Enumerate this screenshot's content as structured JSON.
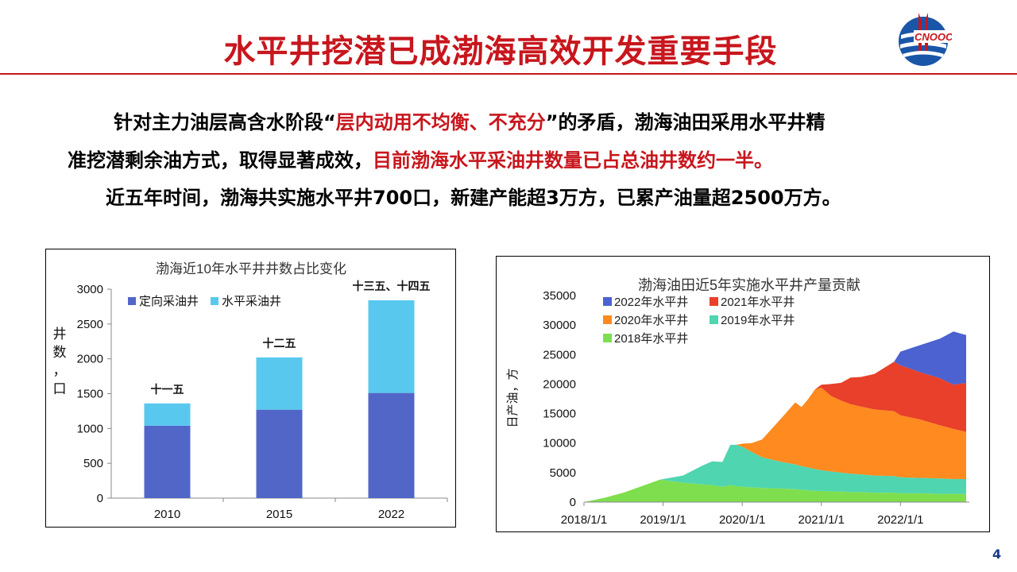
{
  "slide": {
    "title": "水平井挖潜已成渤海高效开发重要手段",
    "page_number": "4",
    "paragraph": {
      "line1_a": "针对主力油层高含水阶段“",
      "line1_hl": "层内动用不均衡、不充分",
      "line1_b": "”的矛盾，渤海油田采用水平井精",
      "line2_a": "准挖潜剩余油方式，取得显著成效，",
      "line2_hl": "目前渤海水平采油井数量已占总油井数约一半。",
      "line3": "近五年时间，渤海共实施水平井700口，新建产能超3万方，已累产油量超2500万方。"
    },
    "logo": {
      "icon": "cnooc-logo",
      "text": "CNOOC",
      "colors": [
        "#c8161d",
        "#1a56a8"
      ]
    }
  },
  "colors": {
    "title_red": "#c8161d",
    "dark_blue": "#5266c8",
    "light_blue": "#59c8ee"
  },
  "chart_data": [
    {
      "type": "bar",
      "stacked": true,
      "title": "渤海近10年水平井井数占比变化",
      "ylabel": "井数，口",
      "xlabel": "",
      "categories": [
        "2010",
        "2015",
        "2022"
      ],
      "category_annotations": [
        "十一五",
        "十二五",
        "十三五、十四五"
      ],
      "ylim": [
        0,
        3000
      ],
      "yticks": [
        0,
        500,
        1000,
        1500,
        2000,
        2500,
        3000
      ],
      "legend_position": "top-left",
      "series": [
        {
          "name": "定向采油井",
          "values": [
            1040,
            1270,
            1510
          ],
          "color": "#5266c8"
        },
        {
          "name": "水平采油井",
          "values": [
            320,
            750,
            1330
          ],
          "color": "#59c8ee"
        }
      ]
    },
    {
      "type": "area",
      "stacked": true,
      "title": "渤海油田近5年实施水平井产量贡献",
      "ylabel": "日产油，方",
      "xlabel": "",
      "x_ticks": [
        "2018/1/1",
        "2019/1/1",
        "2020/1/1",
        "2021/1/1",
        "2022/1/1"
      ],
      "x": [
        2018.0,
        2018.25,
        2018.5,
        2018.75,
        2018.96,
        2019.25,
        2019.5,
        2019.62,
        2019.75,
        2019.85,
        2019.92,
        2020.0,
        2020.12,
        2020.25,
        2020.5,
        2020.67,
        2020.75,
        2020.83,
        2020.92,
        2021.0,
        2021.12,
        2021.25,
        2021.37,
        2021.5,
        2021.67,
        2021.92,
        2022.0,
        2022.25,
        2022.5,
        2022.67,
        2022.83
      ],
      "ylim": [
        0,
        35000
      ],
      "yticks": [
        0,
        5000,
        10000,
        15000,
        20000,
        25000,
        30000,
        35000
      ],
      "legend_position": "top-left",
      "series": [
        {
          "name": "2018年水平井",
          "color": "#7ede4e",
          "values": [
            0,
            700,
            1600,
            2800,
            3800,
            3300,
            3000,
            2900,
            2600,
            2900,
            2700,
            2600,
            2500,
            2400,
            2300,
            2200,
            2100,
            2000,
            1900,
            1900,
            1800,
            1800,
            1700,
            1700,
            1600,
            1600,
            1500,
            1500,
            1400,
            1400,
            1400
          ]
        },
        {
          "name": "2019年水平井",
          "color": "#4fd5b0",
          "values": [
            0,
            0,
            0,
            0,
            0,
            1200,
            3200,
            4000,
            4200,
            6800,
            7000,
            6800,
            6000,
            5200,
            4500,
            4200,
            4000,
            3900,
            3700,
            3500,
            3400,
            3200,
            3100,
            3000,
            2900,
            2800,
            2700,
            2600,
            2600,
            2500,
            2500
          ]
        },
        {
          "name": "2020年水平井",
          "color": "#ff8a1f",
          "values": [
            0,
            0,
            0,
            0,
            0,
            0,
            0,
            0,
            0,
            0,
            0,
            500,
            1500,
            3000,
            7500,
            10500,
            10000,
            11500,
            13500,
            14000,
            12800,
            12200,
            11800,
            11500,
            11200,
            11000,
            10500,
            9900,
            9000,
            8500,
            8000
          ]
        },
        {
          "name": "2021年水平井",
          "color": "#e8402a",
          "values": [
            0,
            0,
            0,
            0,
            0,
            0,
            0,
            0,
            0,
            0,
            0,
            0,
            0,
            0,
            0,
            0,
            0,
            0,
            0,
            500,
            2000,
            3000,
            4500,
            5000,
            6000,
            8400,
            8500,
            8000,
            8000,
            7500,
            8300
          ]
        },
        {
          "name": "2022年水平井",
          "color": "#4b62d0",
          "values": [
            0,
            0,
            0,
            0,
            0,
            0,
            0,
            0,
            0,
            0,
            0,
            0,
            0,
            0,
            0,
            0,
            0,
            0,
            0,
            0,
            0,
            0,
            0,
            0,
            0,
            0,
            2300,
            4600,
            6700,
            9000,
            8100
          ]
        }
      ]
    }
  ]
}
